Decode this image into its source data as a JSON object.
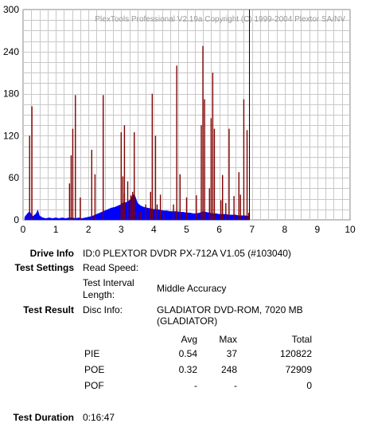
{
  "copyright": "PlexTools Professional V2.19a Copyright (C) 1999-2004 Plextor SA/NV",
  "chart_data": {
    "type": "bar",
    "xlim": [
      0,
      10
    ],
    "ylim": [
      0,
      300
    ],
    "xticks": [
      0,
      1,
      2,
      3,
      4,
      5,
      6,
      7,
      8,
      9,
      10
    ],
    "yticks": [
      0,
      60,
      120,
      180,
      240,
      300
    ],
    "grid": true,
    "end_marker_x": 6.92,
    "series": [
      {
        "values_note": "",
        "color": "#0000ff",
        "points": [
          [
            0.05,
            4
          ],
          [
            0.1,
            7
          ],
          [
            0.15,
            10
          ],
          [
            0.2,
            12
          ],
          [
            0.25,
            8
          ],
          [
            0.3,
            5
          ],
          [
            0.4,
            9
          ],
          [
            0.45,
            14
          ],
          [
            0.5,
            6
          ],
          [
            0.6,
            3
          ],
          [
            0.7,
            2
          ],
          [
            0.8,
            3
          ],
          [
            0.9,
            2
          ],
          [
            1.0,
            3
          ],
          [
            1.1,
            2
          ],
          [
            1.2,
            3
          ],
          [
            1.3,
            2
          ],
          [
            1.4,
            3
          ],
          [
            1.5,
            3
          ],
          [
            1.6,
            2
          ],
          [
            1.7,
            3
          ],
          [
            1.8,
            2
          ],
          [
            1.9,
            3
          ],
          [
            2.0,
            4
          ],
          [
            2.1,
            5
          ],
          [
            2.2,
            7
          ],
          [
            2.3,
            9
          ],
          [
            2.4,
            11
          ],
          [
            2.5,
            13
          ],
          [
            2.6,
            15
          ],
          [
            2.7,
            17
          ],
          [
            2.8,
            18
          ],
          [
            2.9,
            20
          ],
          [
            3.0,
            22
          ],
          [
            3.05,
            25
          ],
          [
            3.1,
            24
          ],
          [
            3.2,
            26
          ],
          [
            3.3,
            30
          ],
          [
            3.35,
            35
          ],
          [
            3.4,
            37
          ],
          [
            3.5,
            24
          ],
          [
            3.6,
            20
          ],
          [
            3.7,
            18
          ],
          [
            3.8,
            17
          ],
          [
            3.9,
            16
          ],
          [
            4.0,
            15
          ],
          [
            4.1,
            15
          ],
          [
            4.2,
            14
          ],
          [
            4.3,
            13
          ],
          [
            4.4,
            13
          ],
          [
            4.5,
            12
          ],
          [
            4.6,
            12
          ],
          [
            4.7,
            12
          ],
          [
            4.8,
            11
          ],
          [
            4.9,
            11
          ],
          [
            5.0,
            10
          ],
          [
            5.1,
            10
          ],
          [
            5.2,
            9
          ],
          [
            5.3,
            9
          ],
          [
            5.4,
            10
          ],
          [
            5.5,
            12
          ],
          [
            5.6,
            11
          ],
          [
            5.7,
            10
          ],
          [
            5.8,
            9
          ],
          [
            5.9,
            9
          ],
          [
            6.0,
            8
          ],
          [
            6.1,
            8
          ],
          [
            6.2,
            8
          ],
          [
            6.3,
            7
          ],
          [
            6.4,
            7
          ],
          [
            6.5,
            7
          ],
          [
            6.6,
            6
          ],
          [
            6.7,
            6
          ],
          [
            6.8,
            6
          ],
          [
            6.9,
            5
          ]
        ]
      },
      {
        "color": "#800000",
        "points": [
          [
            0.2,
            120
          ],
          [
            0.27,
            162
          ],
          [
            1.42,
            52
          ],
          [
            1.47,
            92
          ],
          [
            1.52,
            130
          ],
          [
            1.6,
            178
          ],
          [
            1.75,
            32
          ],
          [
            2.1,
            100
          ],
          [
            2.2,
            65
          ],
          [
            2.45,
            178
          ],
          [
            3.0,
            125
          ],
          [
            3.05,
            62
          ],
          [
            3.1,
            38
          ],
          [
            3.1,
            135
          ],
          [
            3.2,
            55
          ],
          [
            3.3,
            35
          ],
          [
            3.35,
            40
          ],
          [
            3.4,
            125
          ],
          [
            3.5,
            8
          ],
          [
            3.6,
            12
          ],
          [
            3.75,
            22
          ],
          [
            3.9,
            40
          ],
          [
            3.95,
            180
          ],
          [
            4.05,
            120
          ],
          [
            4.1,
            22
          ],
          [
            4.2,
            36
          ],
          [
            4.3,
            10
          ],
          [
            4.6,
            22
          ],
          [
            4.7,
            220
          ],
          [
            4.8,
            65
          ],
          [
            5.0,
            32
          ],
          [
            5.3,
            35
          ],
          [
            5.45,
            135
          ],
          [
            5.5,
            248
          ],
          [
            5.55,
            172
          ],
          [
            5.7,
            45
          ],
          [
            5.75,
            145
          ],
          [
            5.8,
            210
          ],
          [
            5.85,
            130
          ],
          [
            6.05,
            28
          ],
          [
            6.1,
            64
          ],
          [
            6.2,
            24
          ],
          [
            6.3,
            130
          ],
          [
            6.45,
            34
          ],
          [
            6.6,
            68
          ],
          [
            6.65,
            36
          ],
          [
            6.75,
            172
          ],
          [
            6.85,
            128
          ],
          [
            6.9,
            10
          ]
        ]
      }
    ]
  },
  "info": {
    "drive_info_label": "Drive Info",
    "drive_info_value": "ID:0 PLEXTOR DVDR PX-712A V1.05 (#103040)",
    "test_settings_label": "Test Settings",
    "read_speed_label": "Read Speed:",
    "interval_label_1": "Test Interval",
    "interval_label_2": "Length:",
    "interval_value": "Middle Accuracy",
    "test_result_label": "Test Result",
    "disc_info_label": "Disc Info:",
    "disc_info_value": "GLADIATOR DVD-ROM, 7020 MB (GLADIATOR)",
    "duration_label": "Test Duration",
    "duration_value": "0:16:47"
  },
  "results": {
    "headers": [
      "Avg",
      "Max",
      "Total"
    ],
    "rows": [
      {
        "name": "PIE",
        "avg": "0.54",
        "max": "37",
        "total": "120822"
      },
      {
        "name": "POE",
        "avg": "0.32",
        "max": "248",
        "total": "72909"
      },
      {
        "name": "POF",
        "avg": "-",
        "max": "-",
        "total": "0"
      }
    ]
  }
}
